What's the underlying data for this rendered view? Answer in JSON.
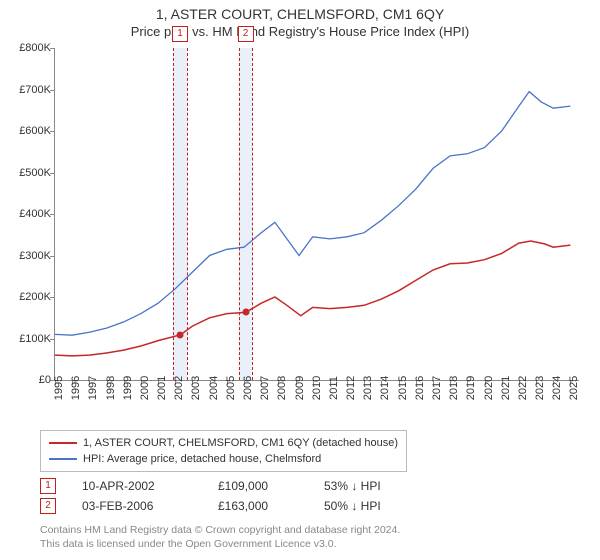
{
  "title_line1": "1, ASTER COURT, CHELMSFORD, CM1 6QY",
  "title_line2": "Price paid vs. HM Land Registry's House Price Index (HPI)",
  "chart": {
    "type": "line",
    "x_start_year": 1995,
    "x_end_year": 2025.5,
    "ylim": [
      0,
      800000
    ],
    "ytick_step": 100000,
    "ytick_labels": [
      "£0",
      "£100K",
      "£200K",
      "£300K",
      "£400K",
      "£500K",
      "£600K",
      "£700K",
      "£800K"
    ],
    "xtick_years": [
      1995,
      1996,
      1997,
      1998,
      1999,
      2000,
      2001,
      2002,
      2003,
      2004,
      2005,
      2006,
      2007,
      2008,
      2009,
      2010,
      2011,
      2012,
      2013,
      2014,
      2015,
      2016,
      2017,
      2018,
      2019,
      2020,
      2021,
      2022,
      2023,
      2024,
      2025
    ],
    "background_color": "#ffffff",
    "axis_color": "#888888",
    "marker_band_color": "#eaf0fa",
    "marker_border_color": "#c02020",
    "series": [
      {
        "name": "price_paid",
        "color": "#c62828",
        "width": 1.5,
        "points": [
          [
            1995.0,
            60000
          ],
          [
            1996.0,
            58000
          ],
          [
            1997.0,
            60000
          ],
          [
            1998.0,
            65000
          ],
          [
            1999.0,
            72000
          ],
          [
            2000.0,
            82000
          ],
          [
            2001.0,
            95000
          ],
          [
            2002.3,
            109000
          ],
          [
            2003.0,
            130000
          ],
          [
            2004.0,
            150000
          ],
          [
            2005.0,
            160000
          ],
          [
            2006.1,
            163000
          ],
          [
            2007.0,
            185000
          ],
          [
            2007.8,
            200000
          ],
          [
            2008.5,
            180000
          ],
          [
            2009.3,
            155000
          ],
          [
            2010.0,
            175000
          ],
          [
            2011.0,
            172000
          ],
          [
            2012.0,
            175000
          ],
          [
            2013.0,
            180000
          ],
          [
            2014.0,
            195000
          ],
          [
            2015.0,
            215000
          ],
          [
            2016.0,
            240000
          ],
          [
            2017.0,
            265000
          ],
          [
            2018.0,
            280000
          ],
          [
            2019.0,
            282000
          ],
          [
            2020.0,
            290000
          ],
          [
            2021.0,
            305000
          ],
          [
            2022.0,
            330000
          ],
          [
            2022.7,
            335000
          ],
          [
            2023.5,
            328000
          ],
          [
            2024.0,
            320000
          ],
          [
            2025.0,
            325000
          ]
        ]
      },
      {
        "name": "hpi",
        "color": "#4a74c9",
        "width": 1.3,
        "points": [
          [
            1995.0,
            110000
          ],
          [
            1996.0,
            108000
          ],
          [
            1997.0,
            115000
          ],
          [
            1998.0,
            125000
          ],
          [
            1999.0,
            140000
          ],
          [
            2000.0,
            160000
          ],
          [
            2001.0,
            185000
          ],
          [
            2002.0,
            220000
          ],
          [
            2003.0,
            260000
          ],
          [
            2004.0,
            300000
          ],
          [
            2005.0,
            315000
          ],
          [
            2006.0,
            320000
          ],
          [
            2007.0,
            355000
          ],
          [
            2007.8,
            380000
          ],
          [
            2008.5,
            340000
          ],
          [
            2009.2,
            300000
          ],
          [
            2010.0,
            345000
          ],
          [
            2011.0,
            340000
          ],
          [
            2012.0,
            345000
          ],
          [
            2013.0,
            355000
          ],
          [
            2014.0,
            385000
          ],
          [
            2015.0,
            420000
          ],
          [
            2016.0,
            460000
          ],
          [
            2017.0,
            510000
          ],
          [
            2018.0,
            540000
          ],
          [
            2019.0,
            545000
          ],
          [
            2020.0,
            560000
          ],
          [
            2021.0,
            600000
          ],
          [
            2022.0,
            660000
          ],
          [
            2022.6,
            695000
          ],
          [
            2023.3,
            670000
          ],
          [
            2024.0,
            655000
          ],
          [
            2025.0,
            660000
          ]
        ]
      }
    ],
    "sale_markers": [
      {
        "label": "1",
        "year": 2002.28,
        "band_half_width_years": 0.4,
        "price": 109000
      },
      {
        "label": "2",
        "year": 2006.09,
        "band_half_width_years": 0.4,
        "price": 163000
      }
    ]
  },
  "legend": {
    "items": [
      {
        "color": "#c62828",
        "label": "1, ASTER COURT, CHELMSFORD, CM1 6QY (detached house)"
      },
      {
        "color": "#4a74c9",
        "label": "HPI: Average price, detached house, Chelmsford"
      }
    ]
  },
  "sales_table": [
    {
      "marker": "1",
      "date": "10-APR-2002",
      "price": "£109,000",
      "delta": "53% ↓ HPI"
    },
    {
      "marker": "2",
      "date": "03-FEB-2006",
      "price": "£163,000",
      "delta": "50% ↓ HPI"
    }
  ],
  "footer_line1": "Contains HM Land Registry data © Crown copyright and database right 2024.",
  "footer_line2": "This data is licensed under the Open Government Licence v3.0."
}
